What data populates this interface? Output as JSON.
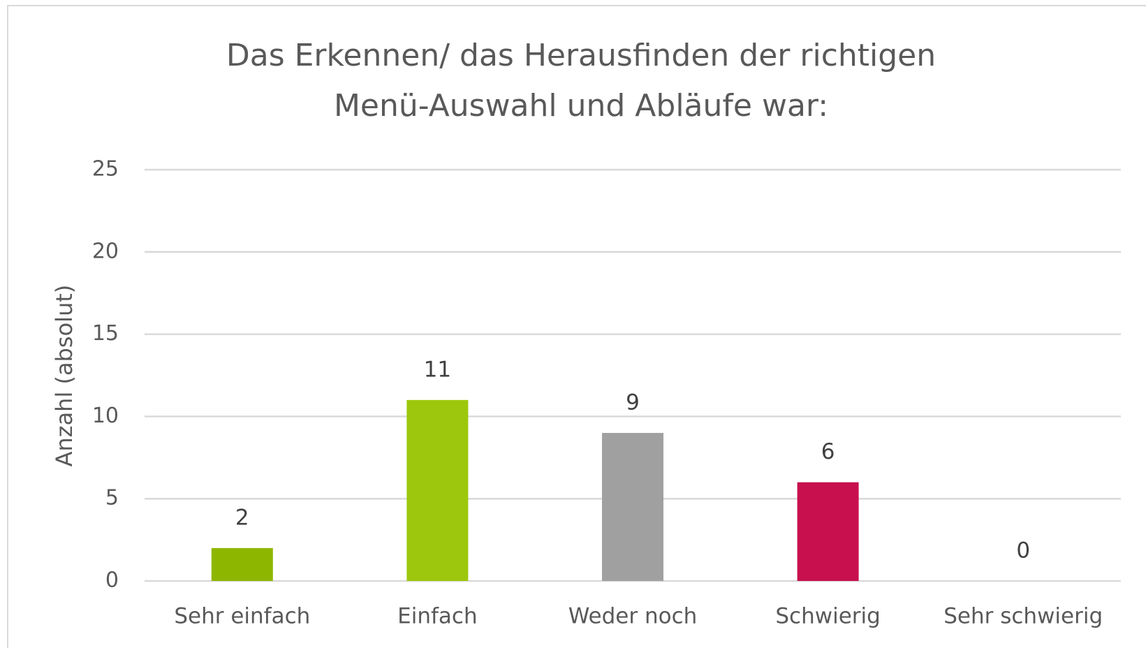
{
  "chart_data": {
    "type": "bar",
    "title": [
      "Das Erkennen/ das Herausfinden der richtigen",
      "Menü-Auswahl und Abläufe war:"
    ],
    "y_label": "Anzahl (absolut)",
    "categories": [
      "Sehr einfach",
      "Einfach",
      "Weder noch",
      "Schwierig",
      "Sehr schwierig"
    ],
    "values": [
      2,
      11,
      9,
      6,
      0
    ],
    "colors": [
      "#8db600",
      "#9dc70c",
      "#a0a0a0",
      "#c8104f",
      "#9b0a3c"
    ],
    "ylim": [
      0,
      25
    ],
    "yticks": [
      0,
      5,
      10,
      15,
      20,
      25
    ],
    "grid": true
  }
}
